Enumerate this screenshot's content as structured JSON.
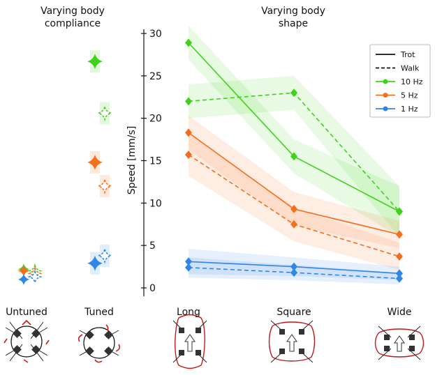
{
  "chart_data": {
    "type": "line",
    "left_title": "Varying body\ncompliance",
    "right_title": "Varying body\nshape",
    "ylabel": "Speed [mm/s]",
    "ylim": [
      -1,
      30.5
    ],
    "yticks": [
      0,
      5,
      10,
      15,
      20,
      25,
      30
    ],
    "categories": [
      "Untuned",
      "Tuned",
      "Long",
      "Square",
      "Wide"
    ],
    "legend": {
      "position": "top-right",
      "entries": [
        {
          "label": "Trot",
          "kind": "solid"
        },
        {
          "label": "Walk",
          "kind": "dashed"
        },
        {
          "label": "10 Hz",
          "color": "#3fd21b"
        },
        {
          "label": "5 Hz",
          "color": "#f36f1c"
        },
        {
          "label": "1 Hz",
          "color": "#2f86e6"
        }
      ]
    },
    "compliance_series": [
      {
        "freq": "10 Hz",
        "color": "#3fd21b",
        "gait": "Trot",
        "untuned": 2.2,
        "tuned": 26.7
      },
      {
        "freq": "10 Hz",
        "color": "#3fd21b",
        "gait": "Walk",
        "untuned": 2.0,
        "tuned": 20.6
      },
      {
        "freq": "5 Hz",
        "color": "#f36f1c",
        "gait": "Trot",
        "untuned": 2.0,
        "tuned": 14.8
      },
      {
        "freq": "5 Hz",
        "color": "#f36f1c",
        "gait": "Walk",
        "untuned": 1.7,
        "tuned": 12.0
      },
      {
        "freq": "1 Hz",
        "color": "#2f86e6",
        "gait": "Trot",
        "untuned": 1.0,
        "tuned": 2.9
      },
      {
        "freq": "1 Hz",
        "color": "#2f86e6",
        "gait": "Walk",
        "untuned": 1.3,
        "tuned": 3.8
      }
    ],
    "shape_series": [
      {
        "name": "10 Hz Trot",
        "color": "#3fd21b",
        "dash": false,
        "values": [
          28.9,
          15.5,
          9.0
        ],
        "band": [
          2.0,
          2.0,
          3.0
        ]
      },
      {
        "name": "10 Hz Walk",
        "color": "#3fd21b",
        "dash": true,
        "values": [
          22.0,
          23.0,
          9.0
        ],
        "band": [
          2.0,
          2.0,
          3.0
        ]
      },
      {
        "name": "5 Hz Trot",
        "color": "#f36f1c",
        "dash": false,
        "values": [
          18.3,
          9.3,
          6.3
        ],
        "band": [
          2.0,
          2.0,
          1.6
        ]
      },
      {
        "name": "5 Hz Walk",
        "color": "#f36f1c",
        "dash": true,
        "values": [
          15.7,
          7.5,
          3.7
        ],
        "band": [
          2.5,
          2.0,
          1.6
        ]
      },
      {
        "name": "1 Hz Trot",
        "color": "#2f86e6",
        "dash": false,
        "values": [
          3.1,
          2.5,
          1.7
        ],
        "band": [
          1.5,
          1.1,
          0.8
        ]
      },
      {
        "name": "1 Hz Walk",
        "color": "#2f86e6",
        "dash": true,
        "values": [
          2.4,
          1.8,
          1.1
        ],
        "band": [
          1.2,
          0.9,
          0.7
        ]
      }
    ]
  }
}
